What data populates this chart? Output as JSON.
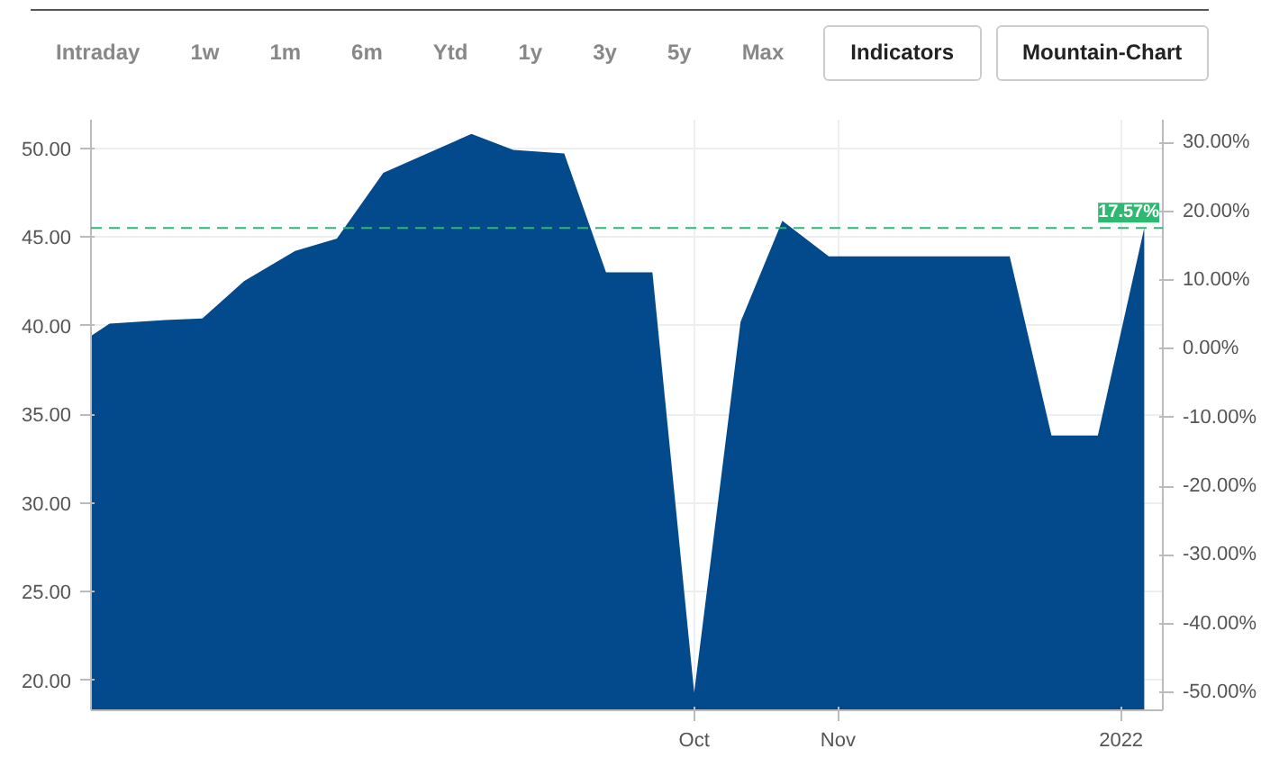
{
  "chart_data": {
    "type": "area",
    "annotations": [
      "Intraday",
      "1w",
      "1m",
      "6m",
      "Ytd",
      "1y",
      "3y",
      "5y",
      "Max",
      "Indicators",
      "Mountain-Chart"
    ],
    "x": [
      "2021-05-24",
      "2021-05-28",
      "2021-06-09",
      "2021-06-17",
      "2021-06-26",
      "2021-07-07",
      "2021-07-16",
      "2021-07-26",
      "2021-08-14",
      "2021-08-23",
      "2021-09-03",
      "2021-09-12",
      "2021-09-22",
      "2021-10-01",
      "2021-10-11",
      "2021-10-20",
      "2021-10-30",
      "2021-12-08",
      "2021-12-17",
      "2021-12-27",
      "2022-01-06"
    ],
    "series": [
      {
        "color": "#024a8c",
        "values": [
          39.4,
          40.1,
          40.3,
          40.4,
          42.5,
          44.2,
          44.9,
          48.6,
          50.8,
          49.9,
          49.7,
          43.0,
          43.0,
          19.3,
          40.2,
          45.9,
          43.9,
          43.9,
          33.8,
          33.8,
          45.5
        ]
      }
    ],
    "xlim": [
      "2021-05-24",
      "2022-01-10"
    ],
    "xticks": [
      {
        "value": "2021-10-01",
        "label": "Oct"
      },
      {
        "value": "2021-11-01",
        "label": "Nov"
      },
      {
        "value": "2022-01-01",
        "label": "2022"
      }
    ],
    "ylim": [
      18.3,
      51.6
    ],
    "yticks": [
      {
        "value": 20,
        "label": "20.00"
      },
      {
        "value": 25,
        "label": "25.00"
      },
      {
        "value": 30,
        "label": "30.00"
      },
      {
        "value": 35,
        "label": "35.00"
      },
      {
        "value": 40,
        "label": "40.00"
      },
      {
        "value": 45,
        "label": "45.00"
      },
      {
        "value": 50,
        "label": "50.00"
      }
    ],
    "y2lim": [
      -52.6,
      33.3
    ],
    "y2ticks": [
      {
        "value": -50,
        "label": "-50.00%"
      },
      {
        "value": -40,
        "label": "-40.00%"
      },
      {
        "value": -30,
        "label": "-30.00%"
      },
      {
        "value": -20,
        "label": "-20.00%"
      },
      {
        "value": -10,
        "label": "-10.00%"
      },
      {
        "value": 0,
        "label": "0.00%"
      },
      {
        "value": 10,
        "label": "10.00%"
      },
      {
        "value": 20,
        "label": "20.00%"
      },
      {
        "value": 30,
        "label": "30.00%"
      }
    ],
    "ref_lines": [
      {
        "axis": "y2",
        "value": 17.57,
        "label": "17.57%",
        "color": "#2fb872",
        "line_style": "dashed"
      }
    ],
    "grid": true
  }
}
